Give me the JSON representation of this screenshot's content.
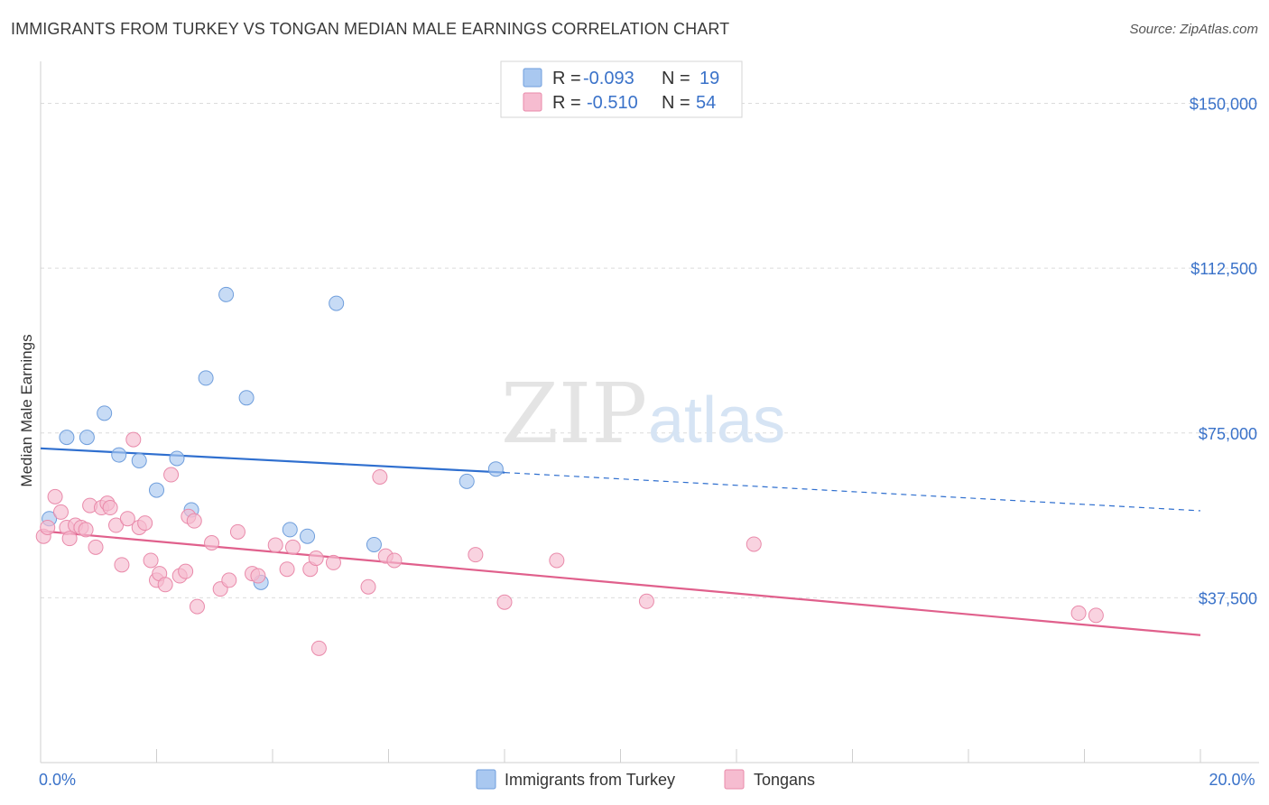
{
  "title": "IMMIGRANTS FROM TURKEY VS TONGAN MEDIAN MALE EARNINGS CORRELATION CHART",
  "source": "Source: ZipAtlas.com",
  "watermark": {
    "zip": "ZIP",
    "atlas": "atlas"
  },
  "legend": {
    "rows": [
      {
        "r_label": "R = ",
        "r_value": "-0.093",
        "n_label": "N = ",
        "n_value": "19",
        "color": "#a9c8f0",
        "stroke": "#6f9edc"
      },
      {
        "r_label": "R = ",
        "r_value": "-0.510",
        "n_label": "N = ",
        "n_value": "54",
        "color": "#f6bcd0",
        "stroke": "#e98aaa"
      }
    ]
  },
  "chart_data": {
    "type": "scatter",
    "title": "IMMIGRANTS FROM TURKEY VS TONGAN MEDIAN MALE EARNINGS CORRELATION CHART",
    "xlabel": "",
    "ylabel": "Median Male Earnings",
    "xlim": [
      0,
      20
    ],
    "ylim": [
      0,
      157500
    ],
    "x_tick_labels": [
      "0.0%",
      "20.0%"
    ],
    "y_ticks": [
      37500,
      75000,
      112500,
      150000
    ],
    "y_tick_labels": [
      "$37,500",
      "$75,000",
      "$112,500",
      "$150,000"
    ],
    "grid": true,
    "legend_position": "top-center",
    "series": [
      {
        "name": "Immigrants from Turkey",
        "color": "#a9c8f0",
        "stroke": "#6f9edc",
        "line_color": "#2f6fcf",
        "trend": {
          "x0": 0,
          "y0": 71500,
          "x1": 8,
          "y1": 66000,
          "x_dash_end": 20,
          "y_dash_end": 57300
        },
        "points": [
          [
            0.15,
            55500
          ],
          [
            0.45,
            74000
          ],
          [
            0.8,
            74000
          ],
          [
            1.1,
            79500
          ],
          [
            1.35,
            70000
          ],
          [
            1.7,
            68700
          ],
          [
            2.0,
            62000
          ],
          [
            2.35,
            69200
          ],
          [
            2.6,
            57500
          ],
          [
            2.85,
            87500
          ],
          [
            3.2,
            106500
          ],
          [
            3.55,
            83000
          ],
          [
            3.8,
            41000
          ],
          [
            4.3,
            53000
          ],
          [
            4.6,
            51500
          ],
          [
            5.1,
            104500
          ],
          [
            5.75,
            49600
          ],
          [
            7.35,
            64000
          ],
          [
            7.85,
            66800
          ]
        ]
      },
      {
        "name": "Tongans",
        "color": "#f6bcd0",
        "stroke": "#e98aaa",
        "line_color": "#e0608c",
        "trend": {
          "x0": 0,
          "y0": 52700,
          "x1": 20,
          "y1": 29000
        },
        "points": [
          [
            0.05,
            51500
          ],
          [
            0.12,
            53500
          ],
          [
            0.25,
            60500
          ],
          [
            0.35,
            57000
          ],
          [
            0.45,
            53500
          ],
          [
            0.5,
            51000
          ],
          [
            0.6,
            54000
          ],
          [
            0.7,
            53500
          ],
          [
            0.78,
            53000
          ],
          [
            0.85,
            58500
          ],
          [
            0.95,
            49000
          ],
          [
            1.05,
            58000
          ],
          [
            1.15,
            59000
          ],
          [
            1.2,
            58000
          ],
          [
            1.3,
            54000
          ],
          [
            1.4,
            45000
          ],
          [
            1.5,
            55500
          ],
          [
            1.6,
            73500
          ],
          [
            1.7,
            53500
          ],
          [
            1.8,
            54500
          ],
          [
            1.9,
            46000
          ],
          [
            2.0,
            41500
          ],
          [
            2.05,
            43000
          ],
          [
            2.15,
            40500
          ],
          [
            2.25,
            65500
          ],
          [
            2.4,
            42500
          ],
          [
            2.5,
            43500
          ],
          [
            2.55,
            56000
          ],
          [
            2.65,
            55000
          ],
          [
            2.7,
            35500
          ],
          [
            2.95,
            50000
          ],
          [
            3.1,
            39500
          ],
          [
            3.25,
            41500
          ],
          [
            3.4,
            52500
          ],
          [
            3.65,
            43000
          ],
          [
            3.75,
            42500
          ],
          [
            4.05,
            49500
          ],
          [
            4.25,
            44000
          ],
          [
            4.35,
            49000
          ],
          [
            4.65,
            44000
          ],
          [
            4.75,
            46500
          ],
          [
            4.8,
            26000
          ],
          [
            5.05,
            45500
          ],
          [
            5.65,
            40000
          ],
          [
            5.85,
            65000
          ],
          [
            5.95,
            47000
          ],
          [
            6.1,
            46000
          ],
          [
            7.5,
            47300
          ],
          [
            8.0,
            36500
          ],
          [
            8.9,
            46000
          ],
          [
            10.45,
            36700
          ],
          [
            12.3,
            49700
          ],
          [
            17.9,
            34000
          ],
          [
            18.2,
            33500
          ]
        ]
      }
    ]
  }
}
